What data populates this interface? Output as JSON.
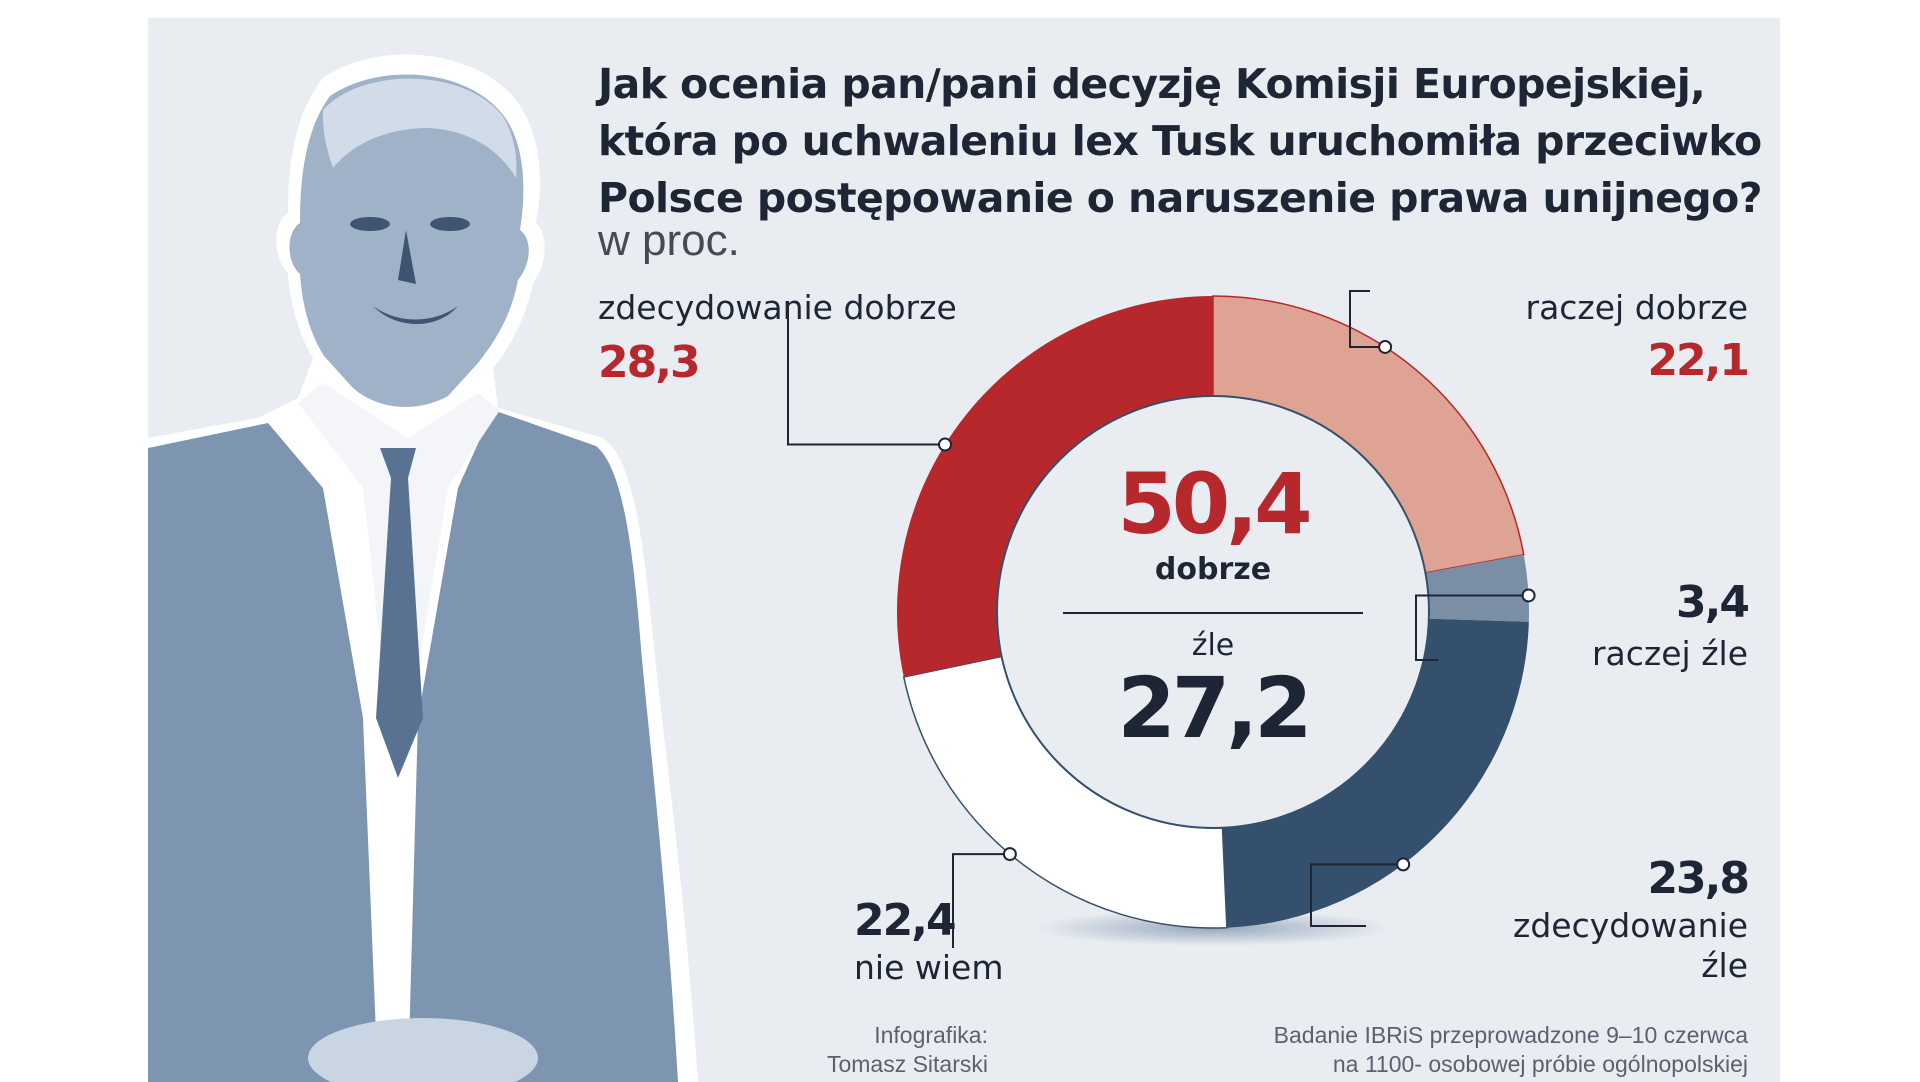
{
  "header": {
    "title_lines": [
      "Jak ocenia pan/pani decyzję Komisji Europejskiej,",
      "która po uchwaleniu lex Tusk uruchomiła przeciwko",
      "Polsce postępowanie o naruszenie prawa unijnego?"
    ],
    "unit": "w proc."
  },
  "chart_data": {
    "type": "pie",
    "title": "Jak ocenia pan/pani decyzję Komisji Europejskiej, która po uchwaleniu lex Tusk uruchomiła przeciwko Polsce postępowanie o naruszenie prawa unijnego?",
    "unit": "w proc.",
    "categories": [
      "zdecydowanie dobrze",
      "raczej dobrze",
      "raczej źle",
      "zdecydowanie źle",
      "nie wiem"
    ],
    "values": [
      28.3,
      22.1,
      3.4,
      23.8,
      22.4
    ],
    "value_labels": [
      "28,3",
      "22,1",
      "3,4",
      "23,8",
      "22,4"
    ],
    "colors": [
      "#b6282c",
      "#dea392",
      "#7a8fa6",
      "#34506d",
      "#ffffff"
    ],
    "summary": {
      "good_value": "50,4",
      "good_label": "dobrze",
      "bad_label": "źle",
      "bad_value": "27,2"
    }
  },
  "labels": {
    "zdecydowanie_dobrze": "zdecydowanie dobrze",
    "raczej_dobrze": "raczej dobrze",
    "raczej_zle": "raczej źle",
    "zdecydowanie_zle_1": "zdecydowanie",
    "zdecydowanie_zle_2": "źle",
    "nie_wiem": "nie wiem"
  },
  "credits": {
    "infographic_1": "Infografika:",
    "infographic_2": "Tomasz Sitarski",
    "source_1": "Badanie IBRiS przeprowadzone 9–10 czerwca",
    "source_2": "na 1100- osobowej próbie ogólnopolskiej"
  },
  "theme": {
    "background": "#e9edf2",
    "figure_color": "#7d95b0",
    "accent_red": "#b6282c",
    "text_navy": "#1e2636"
  }
}
